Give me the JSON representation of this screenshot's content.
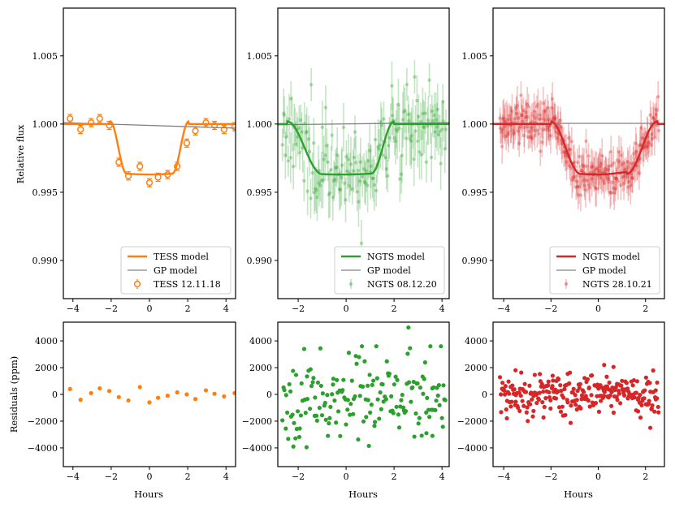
{
  "figure": {
    "ylabel_top": "Relative flux",
    "ylabel_bottom": "Residuals (ppm)",
    "xlabel": "Hours"
  },
  "chart_data": [
    {
      "id": "tess",
      "type": "scatter",
      "color": "#ff7f0e",
      "marker": "open-circle",
      "top": {
        "xlim": [
          -4.5,
          4.5
        ],
        "ylim": [
          0.9872,
          1.0085
        ],
        "xticks": [
          -4,
          -2,
          0,
          2,
          4
        ],
        "xtick_labels": [
          "−4",
          "−2",
          "0",
          "2",
          "4"
        ],
        "yticks": [
          0.99,
          0.995,
          1.0,
          1.005
        ],
        "ytick_labels": [
          "0.990",
          "0.995",
          "1.000",
          "1.005"
        ],
        "x": [
          -4.15,
          -3.6,
          -3.05,
          -2.6,
          -2.1,
          -1.6,
          -1.1,
          -0.5,
          0.0,
          0.45,
          0.95,
          1.45,
          1.95,
          2.4,
          2.95,
          3.4,
          3.9,
          4.45
        ],
        "y": [
          1.0004,
          0.9996,
          1.0001,
          1.0004,
          0.9999,
          0.9972,
          0.9962,
          0.9969,
          0.9957,
          0.9961,
          0.9963,
          0.9969,
          0.9986,
          0.9995,
          1.0001,
          0.9999,
          0.9996,
          0.9998
        ],
        "yerr": [
          0.0003,
          0.0003,
          0.0003,
          0.0003,
          0.0003,
          0.0003,
          0.0003,
          0.0003,
          0.0003,
          0.0003,
          0.0003,
          0.0003,
          0.0003,
          0.0003,
          0.0003,
          0.0003,
          0.0003,
          0.0003
        ],
        "transit": {
          "t1": -2.05,
          "t2": -1.2,
          "t3": 1.2,
          "t4": 2.05,
          "depth": 0.0037,
          "slope": 0
        },
        "gp": [
          [
            -4.5,
            1.0001
          ],
          [
            4.5,
            0.9997
          ]
        ],
        "legend": [
          "TESS model",
          "GP model",
          "TESS 12.11.18"
        ]
      },
      "bottom": {
        "xlim": [
          -4.5,
          4.5
        ],
        "ylim": [
          -5400,
          5400
        ],
        "xticks": [
          -4,
          -2,
          0,
          2,
          4
        ],
        "xtick_labels": [
          "−4",
          "−2",
          "0",
          "2",
          "4"
        ],
        "yticks": [
          -4000,
          -2000,
          0,
          2000,
          4000
        ],
        "ytick_labels": [
          "−4000",
          "−2000",
          "0",
          "2000",
          "4000"
        ],
        "x": [
          -4.15,
          -3.6,
          -3.05,
          -2.6,
          -2.1,
          -1.6,
          -1.1,
          -0.5,
          0.0,
          0.45,
          0.95,
          1.45,
          1.95,
          2.4,
          2.95,
          3.4,
          3.9,
          4.45
        ],
        "y": [
          400,
          -400,
          100,
          450,
          250,
          -200,
          -450,
          550,
          -600,
          -250,
          -100,
          150,
          0,
          -350,
          300,
          50,
          -150,
          100
        ]
      }
    },
    {
      "id": "ngts1",
      "type": "scatter",
      "color": "#2ca02c",
      "marker": "dot",
      "top": {
        "xlim": [
          -2.85,
          4.3
        ],
        "ylim": [
          0.9872,
          1.0085
        ],
        "xticks": [
          -2,
          0,
          2,
          4
        ],
        "xtick_labels": [
          "−2",
          "0",
          "2",
          "4"
        ],
        "yticks": [
          0.99,
          0.995,
          1.0,
          1.005
        ],
        "ytick_labels": [
          "0.990",
          "0.995",
          "1.000",
          "1.005"
        ],
        "n": 170,
        "x_start": -2.65,
        "x_end": 4.15,
        "noise": 0.0016,
        "err": 0.0016,
        "seed": 11,
        "transit": {
          "t1": -2.45,
          "t2": -1.0,
          "t3": 1.05,
          "t4": 2.0,
          "depth": 0.0037,
          "slope": 0
        },
        "gp": [
          [
            -2.85,
            0.99995
          ],
          [
            4.3,
            1.0001
          ]
        ],
        "legend": [
          "NGTS model",
          "GP model",
          "NGTS 08.12.20"
        ]
      },
      "bottom": {
        "xlim": [
          -2.85,
          4.3
        ],
        "ylim": [
          -5400,
          5400
        ],
        "xticks": [
          -2,
          0,
          2,
          4
        ],
        "xtick_labels": [
          "−2",
          "0",
          "2",
          "4"
        ],
        "yticks": [
          -4000,
          -2000,
          0,
          2000,
          4000
        ],
        "ytick_labels": [
          "−4000",
          "−2000",
          "0",
          "2000",
          "4000"
        ],
        "n": 170,
        "x_start": -2.65,
        "x_end": 4.15,
        "noise": 1500,
        "seed": 23,
        "x_extra": [
          2.6,
          -2.2,
          -1.65,
          0.95,
          3.6,
          3.35
        ],
        "y_extra": [
          5000,
          -3900,
          -3950,
          -3850,
          -3100,
          -2900
        ]
      }
    },
    {
      "id": "ngts2",
      "type": "scatter",
      "color": "#d62728",
      "marker": "dot",
      "top": {
        "xlim": [
          -4.45,
          2.8
        ],
        "ylim": [
          0.9872,
          1.0085
        ],
        "xticks": [
          -4,
          -2,
          0,
          2
        ],
        "xtick_labels": [
          "−4",
          "−2",
          "0",
          "2"
        ],
        "yticks": [
          0.99,
          0.995,
          1.0,
          1.005
        ],
        "ytick_labels": [
          "0.990",
          "0.995",
          "1.000",
          "1.005"
        ],
        "n": 260,
        "x_start": -4.15,
        "x_end": 2.55,
        "noise": 0.0008,
        "err": 0.0011,
        "seed": 37,
        "transit": {
          "t1": -2.0,
          "t2": -0.75,
          "t3": 1.2,
          "t4": 2.5,
          "depth": 0.0037,
          "slope": 0.0005
        },
        "gp": [
          [
            -4.45,
            1.00005
          ],
          [
            2.8,
            1.00005
          ]
        ],
        "legend": [
          "NGTS model",
          "GP model",
          "NGTS 28.10.21"
        ]
      },
      "bottom": {
        "xlim": [
          -4.45,
          2.8
        ],
        "ylim": [
          -5400,
          5400
        ],
        "xticks": [
          -4,
          -2,
          0,
          2
        ],
        "xtick_labels": [
          "−4",
          "−2",
          "0",
          "2"
        ],
        "yticks": [
          -4000,
          -2000,
          0,
          2000,
          4000
        ],
        "ytick_labels": [
          "−4000",
          "−2000",
          "0",
          "2000",
          "4000"
        ],
        "n": 260,
        "x_start": -4.15,
        "x_end": 2.55,
        "noise": 750,
        "seed": 53,
        "x_extra": [
          2.2,
          0.25,
          -3.5
        ],
        "y_extra": [
          -2500,
          2200,
          1800
        ]
      }
    }
  ]
}
